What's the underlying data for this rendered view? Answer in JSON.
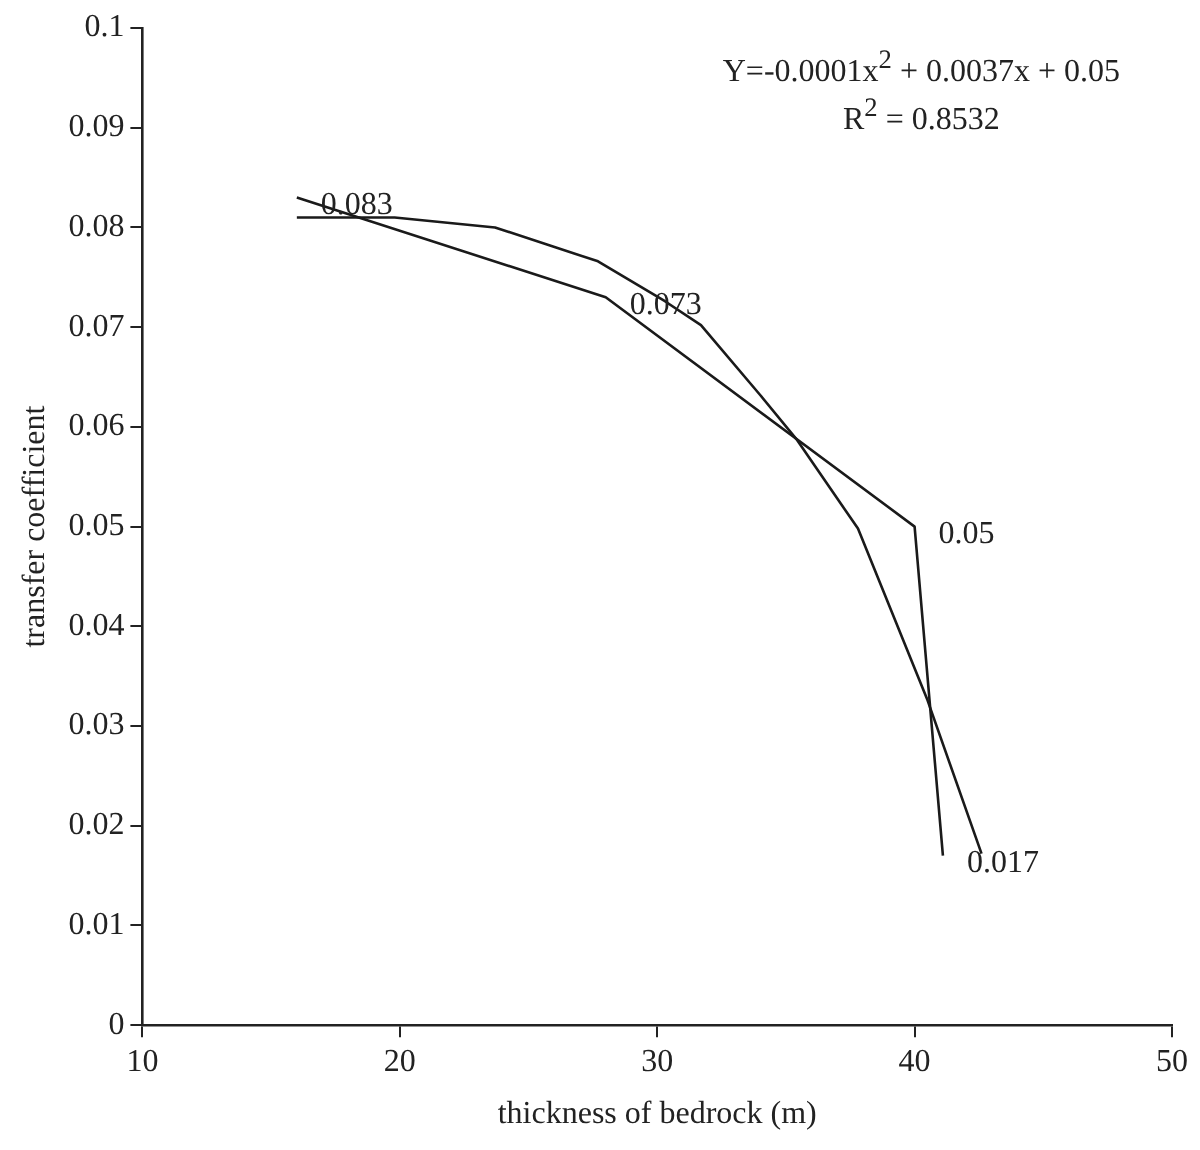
{
  "chart_data": {
    "type": "line",
    "xlabel": "thickness of bedrock (m)",
    "ylabel": "transfer coefficient",
    "xlim": [
      10,
      50
    ],
    "xticks": [
      10,
      20,
      30,
      40,
      50
    ],
    "ylim": [
      0,
      0.1
    ],
    "yticks": [
      0,
      0.01,
      0.02,
      0.03,
      0.04,
      0.05,
      0.06,
      0.07,
      0.08,
      0.09,
      0.1
    ],
    "grid": false,
    "legend": false,
    "marker": "none",
    "line_style": "solid",
    "series": [
      {
        "color": "#1a1a1a",
        "x": [
          16,
          28,
          40,
          41.1
        ],
        "values": [
          0.083,
          0.073,
          0.05,
          0.017
        ],
        "data_labels": true
      },
      {
        "type": "line",
        "color": "#1a1a1a",
        "x": [
          16,
          19.8,
          23.7,
          27.7,
          30.3,
          31.7,
          34.0,
          35.4,
          37.8,
          40.5,
          42.6
        ],
        "values": [
          0.081,
          0.081,
          0.08,
          0.0766,
          0.0726,
          0.0702,
          0.0632,
          0.0588,
          0.0498,
          0.0326,
          0.0172
        ]
      }
    ],
    "annotations": [
      "Y=-0.0001x$^{2}$ + 0.0037x + 0.05",
      "R$^{2}$ = 0.8532"
    ]
  }
}
